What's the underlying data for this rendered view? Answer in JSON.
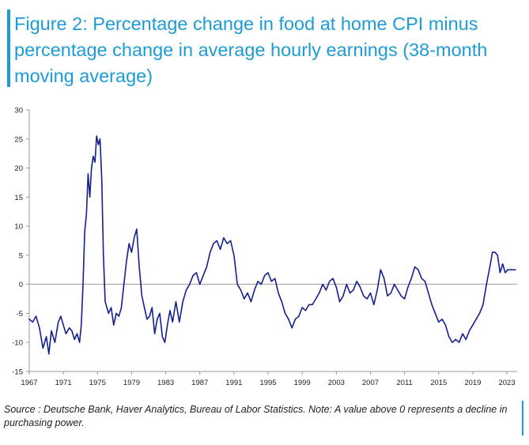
{
  "title": "Figure 2: Percentage change in food at home CPI minus percentage change in average hourly earnings (38-month moving average)",
  "source": "Source : Deutsche Bank, Haver Analytics, Bureau of Labor Statistics. Note: A value above 0 represents a decline in purchasing power.",
  "colors": {
    "accent": "#1d9bd7",
    "line": "#14208c",
    "axis": "#999999"
  },
  "chart_data": {
    "type": "line",
    "xlabel": "",
    "ylabel": "",
    "xlim": [
      1967,
      2024.2
    ],
    "ylim": [
      -15,
      30
    ],
    "yticks": [
      30,
      25,
      20,
      15,
      10,
      5,
      0,
      -5,
      -10,
      -15
    ],
    "xticks": [
      1967,
      1971,
      1975,
      1979,
      1983,
      1987,
      1991,
      1995,
      1999,
      2003,
      2007,
      2011,
      2015,
      2019,
      2023
    ],
    "grid": false,
    "legend": "none",
    "series": [
      {
        "x": [
          1967.0,
          1967.4,
          1967.8,
          1968.2,
          1968.6,
          1969.0,
          1969.3,
          1969.6,
          1970.0,
          1970.4,
          1970.7,
          1971.0,
          1971.3,
          1971.7,
          1972.0,
          1972.3,
          1972.6,
          1972.9,
          1973.1,
          1973.3,
          1973.5,
          1973.7,
          1973.9,
          1974.1,
          1974.3,
          1974.5,
          1974.7,
          1974.9,
          1975.1,
          1975.3,
          1975.5,
          1975.7,
          1975.9,
          1976.1,
          1976.3,
          1976.6,
          1976.9,
          1977.2,
          1977.5,
          1977.8,
          1978.1,
          1978.4,
          1978.7,
          1979.0,
          1979.3,
          1979.6,
          1979.9,
          1980.2,
          1980.5,
          1980.8,
          1981.1,
          1981.4,
          1981.7,
          1982.0,
          1982.3,
          1982.6,
          1982.9,
          1983.2,
          1983.5,
          1983.8,
          1984.2,
          1984.6,
          1985.0,
          1985.4,
          1985.8,
          1986.2,
          1986.6,
          1987.0,
          1987.4,
          1987.8,
          1988.2,
          1988.6,
          1989.0,
          1989.4,
          1989.8,
          1990.2,
          1990.6,
          1991.0,
          1991.4,
          1991.8,
          1992.2,
          1992.6,
          1993.0,
          1993.4,
          1993.8,
          1994.2,
          1994.6,
          1995.0,
          1995.4,
          1995.8,
          1996.2,
          1996.6,
          1997.0,
          1997.4,
          1997.8,
          1998.2,
          1998.6,
          1999.0,
          1999.4,
          1999.8,
          2000.2,
          2000.6,
          2001.0,
          2001.4,
          2001.8,
          2002.2,
          2002.6,
          2003.0,
          2003.4,
          2003.8,
          2004.2,
          2004.6,
          2005.0,
          2005.4,
          2005.8,
          2006.2,
          2006.6,
          2007.0,
          2007.4,
          2007.8,
          2008.2,
          2008.6,
          2009.0,
          2009.4,
          2009.8,
          2010.2,
          2010.6,
          2011.0,
          2011.4,
          2011.8,
          2012.2,
          2012.6,
          2013.0,
          2013.4,
          2013.8,
          2014.2,
          2014.6,
          2015.0,
          2015.4,
          2015.8,
          2016.2,
          2016.6,
          2017.0,
          2017.4,
          2017.8,
          2018.2,
          2018.6,
          2019.0,
          2019.4,
          2019.8,
          2020.2,
          2020.6,
          2021.0,
          2021.3,
          2021.6,
          2021.9,
          2022.2,
          2022.5,
          2022.8,
          2023.1,
          2023.4,
          2023.7,
          2024.0
        ],
        "values": [
          -6,
          -6.5,
          -5.5,
          -7.5,
          -11,
          -9,
          -12,
          -8,
          -10,
          -6.5,
          -5.5,
          -7,
          -8.5,
          -7.5,
          -8,
          -9.5,
          -8.5,
          -10,
          -7,
          0,
          9,
          12,
          19,
          15,
          20,
          22,
          21,
          25.5,
          24,
          25,
          18,
          5,
          -3,
          -4,
          -5,
          -4,
          -7,
          -5,
          -5.5,
          -4,
          0,
          4,
          7,
          5.5,
          8,
          9.5,
          3,
          -2,
          -4,
          -6,
          -5.5,
          -4,
          -8.5,
          -6,
          -5,
          -9,
          -10,
          -7,
          -4.5,
          -6.5,
          -3,
          -6.5,
          -3,
          -1,
          0,
          1.5,
          2,
          0,
          1.5,
          3,
          5.5,
          7,
          7.5,
          6,
          8,
          7,
          7.5,
          5,
          0,
          -1,
          -2.5,
          -1.5,
          -3,
          -1,
          0.5,
          0,
          1.5,
          2,
          0.5,
          1,
          -1.5,
          -3,
          -5,
          -6,
          -7.5,
          -6,
          -5.5,
          -4,
          -4.5,
          -3.5,
          -3.5,
          -2.5,
          -1.5,
          0,
          -1,
          0.5,
          1,
          -0.5,
          -3,
          -2,
          0,
          -1.5,
          -1,
          0.5,
          -0.5,
          -2,
          -2.5,
          -1.5,
          -3.5,
          -1,
          2.5,
          1,
          -2,
          -1.5,
          0,
          -1,
          -2,
          -2.5,
          -0.5,
          1,
          3,
          2.5,
          1,
          0.5,
          -1.5,
          -3.5,
          -5,
          -6.5,
          -6,
          -7,
          -9,
          -10,
          -9.5,
          -10,
          -8.5,
          -9.5,
          -8,
          -7,
          -6,
          -5,
          -3.5,
          0,
          3,
          5.5,
          5.5,
          5,
          2,
          3.5,
          2,
          2.5,
          2.5,
          2.5,
          2.5
        ]
      }
    ]
  }
}
